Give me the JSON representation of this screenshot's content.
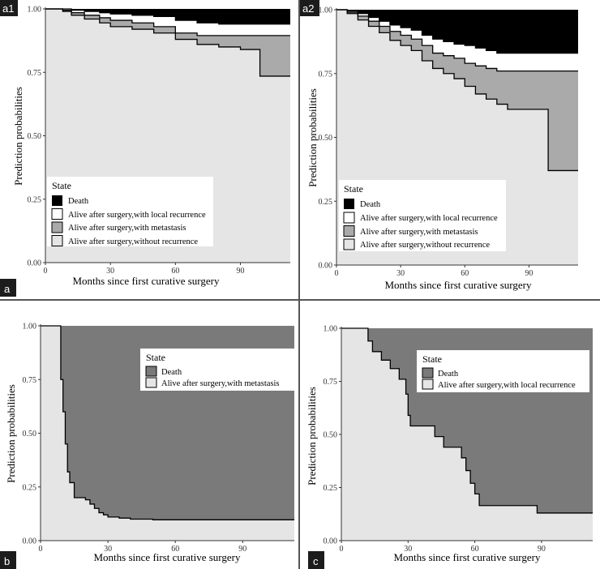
{
  "figure": {
    "divider_color": "#555555"
  },
  "chart_data": [
    {
      "id": "a1",
      "panel_label": "a1",
      "group_label": "a",
      "type": "area",
      "stacked_step_area": true,
      "xlabel": "Months since first curative surgery",
      "ylabel": "Prediction probabilities",
      "xlim": [
        0,
        113
      ],
      "ylim": [
        0,
        1
      ],
      "xticks": [
        "0",
        "30",
        "60",
        "90"
      ],
      "xtick_values": [
        0,
        30,
        60,
        90
      ],
      "yticks": [
        "0.00",
        "0.25",
        "0.50",
        "0.75",
        "1.00"
      ],
      "ytick_values": [
        0,
        0.25,
        0.5,
        0.75,
        1.0
      ],
      "legend": {
        "title": "State",
        "position": "bottom-left",
        "entries": [
          {
            "label": "Death",
            "color": "#000000"
          },
          {
            "label": "Alive after surgery,with local recurrence",
            "color": "#ffffff"
          },
          {
            "label": "Alive after surgery,with metastasis",
            "color": "#aaaaaa"
          },
          {
            "label": "Alive after surgery,without recurrence",
            "color": "#e5e5e5"
          }
        ]
      },
      "series": [
        {
          "name": "Alive after surgery,without recurrence",
          "color": "#e5e5e5",
          "x": [
            0,
            8,
            12,
            18,
            25,
            30,
            40,
            50,
            60,
            70,
            80,
            90,
            99,
            113
          ],
          "values": [
            1.0,
            0.99,
            0.975,
            0.96,
            0.945,
            0.93,
            0.92,
            0.905,
            0.88,
            0.86,
            0.85,
            0.84,
            0.735,
            0.735
          ]
        },
        {
          "name": "Alive after surgery,with metastasis",
          "color": "#aaaaaa",
          "x": [
            0,
            8,
            12,
            18,
            25,
            30,
            40,
            50,
            60,
            70,
            80,
            90,
            99,
            113
          ],
          "values": [
            1.0,
            0.995,
            0.985,
            0.975,
            0.965,
            0.955,
            0.945,
            0.93,
            0.905,
            0.895,
            0.895,
            0.895,
            0.895,
            0.895
          ]
        },
        {
          "name": "Alive after surgery,with local recurrence",
          "color": "#ffffff",
          "x": [
            0,
            8,
            12,
            18,
            25,
            30,
            40,
            50,
            60,
            70,
            80,
            90,
            99,
            113
          ],
          "values": [
            1.0,
            1.0,
            0.995,
            0.99,
            0.985,
            0.98,
            0.975,
            0.97,
            0.955,
            0.945,
            0.94,
            0.94,
            0.94,
            0.94
          ]
        },
        {
          "name": "Death",
          "color": "#000000",
          "x": [
            0,
            113
          ],
          "values": [
            1.0,
            1.0
          ]
        }
      ]
    },
    {
      "id": "a2",
      "panel_label": "a2",
      "type": "area",
      "stacked_step_area": true,
      "xlabel": "Months since first curative surgery",
      "ylabel": "Prediction probabilities",
      "xlim": [
        0,
        113
      ],
      "ylim": [
        0,
        1
      ],
      "xticks": [
        "0",
        "30",
        "60",
        "90"
      ],
      "xtick_values": [
        0,
        30,
        60,
        90
      ],
      "yticks": [
        "0.00",
        "0.25",
        "0.50",
        "0.75",
        "1.00"
      ],
      "ytick_values": [
        0,
        0.25,
        0.5,
        0.75,
        1.0
      ],
      "legend": {
        "title": "State",
        "position": "bottom-left",
        "entries": [
          {
            "label": "Death",
            "color": "#000000"
          },
          {
            "label": "Alive after surgery,with local recurrence",
            "color": "#ffffff"
          },
          {
            "label": "Alive after surgery,with metastasis",
            "color": "#aaaaaa"
          },
          {
            "label": "Alive after surgery,without recurrence",
            "color": "#e5e5e5"
          }
        ]
      },
      "series": [
        {
          "name": "Alive after surgery,without recurrence",
          "color": "#e5e5e5",
          "x": [
            0,
            5,
            10,
            15,
            20,
            25,
            30,
            35,
            40,
            45,
            50,
            55,
            60,
            65,
            70,
            75,
            80,
            90,
            99,
            113
          ],
          "values": [
            1.0,
            0.985,
            0.96,
            0.935,
            0.91,
            0.88,
            0.86,
            0.84,
            0.8,
            0.77,
            0.75,
            0.73,
            0.7,
            0.67,
            0.65,
            0.63,
            0.61,
            0.61,
            0.37,
            0.37
          ]
        },
        {
          "name": "Alive after surgery,with metastasis",
          "color": "#aaaaaa",
          "x": [
            0,
            5,
            10,
            15,
            20,
            25,
            30,
            35,
            40,
            45,
            50,
            55,
            60,
            65,
            70,
            75,
            80,
            90,
            99,
            113
          ],
          "values": [
            1.0,
            0.99,
            0.975,
            0.955,
            0.935,
            0.915,
            0.9,
            0.885,
            0.86,
            0.83,
            0.82,
            0.81,
            0.79,
            0.78,
            0.77,
            0.76,
            0.76,
            0.76,
            0.76,
            0.76
          ]
        },
        {
          "name": "Alive after surgery,with local recurrence",
          "color": "#ffffff",
          "x": [
            0,
            5,
            10,
            15,
            20,
            25,
            30,
            35,
            40,
            45,
            50,
            55,
            60,
            65,
            70,
            75,
            80,
            90,
            99,
            113
          ],
          "values": [
            1.0,
            0.995,
            0.985,
            0.97,
            0.955,
            0.94,
            0.93,
            0.92,
            0.9,
            0.885,
            0.875,
            0.865,
            0.86,
            0.85,
            0.84,
            0.83,
            0.83,
            0.83,
            0.83,
            0.83
          ]
        },
        {
          "name": "Death",
          "color": "#000000",
          "x": [
            0,
            113
          ],
          "values": [
            1.0,
            1.0
          ]
        }
      ]
    },
    {
      "id": "b",
      "panel_label": "b",
      "type": "area",
      "stacked_step_area": true,
      "xlabel": "Months since first curative surgery",
      "ylabel": "Prediction probabilities",
      "xlim": [
        0,
        113
      ],
      "ylim": [
        0,
        1
      ],
      "xticks": [
        "0",
        "30",
        "60",
        "90"
      ],
      "xtick_values": [
        0,
        30,
        60,
        90
      ],
      "yticks": [
        "0.00",
        "0.25",
        "0.50",
        "0.75",
        "1.00"
      ],
      "ytick_values": [
        0,
        0.25,
        0.5,
        0.75,
        1.0
      ],
      "legend": {
        "title": "State",
        "position": "top-right",
        "entries": [
          {
            "label": "Death",
            "color": "#7a7a7a"
          },
          {
            "label": "Alive after surgery,with metastasis",
            "color": "#e5e5e5"
          }
        ]
      },
      "series": [
        {
          "name": "Alive after surgery,with metastasis",
          "color": "#e5e5e5",
          "x": [
            0,
            8,
            9,
            10,
            11,
            12,
            13,
            15,
            20,
            22,
            24,
            26,
            28,
            30,
            35,
            40,
            50,
            113
          ],
          "values": [
            1.0,
            1.0,
            0.75,
            0.6,
            0.45,
            0.32,
            0.27,
            0.2,
            0.19,
            0.17,
            0.15,
            0.13,
            0.12,
            0.11,
            0.105,
            0.1,
            0.097,
            0.097
          ]
        },
        {
          "name": "Death",
          "color": "#7a7a7a",
          "x": [
            0,
            113
          ],
          "values": [
            1.0,
            1.0
          ]
        }
      ]
    },
    {
      "id": "c",
      "panel_label": "c",
      "type": "area",
      "stacked_step_area": true,
      "xlabel": "Months since first curative surgery",
      "ylabel": "Prediction probabilities",
      "xlim": [
        0,
        113
      ],
      "ylim": [
        0,
        1
      ],
      "xticks": [
        "0",
        "30",
        "60",
        "90"
      ],
      "xtick_values": [
        0,
        30,
        60,
        90
      ],
      "yticks": [
        "0.00",
        "0.25",
        "0.50",
        "0.75",
        "1.00"
      ],
      "ytick_values": [
        0,
        0.25,
        0.5,
        0.75,
        1.0
      ],
      "legend": {
        "title": "State",
        "position": "top-right",
        "entries": [
          {
            "label": "Death",
            "color": "#7a7a7a"
          },
          {
            "label": "Alive after surgery,with local recurrence",
            "color": "#e5e5e5"
          }
        ]
      },
      "series": [
        {
          "name": "Alive after surgery,with local recurrence",
          "color": "#e5e5e5",
          "x": [
            0,
            12,
            14,
            18,
            22,
            26,
            29,
            30,
            31,
            33,
            36,
            42,
            46,
            50,
            54,
            56,
            58,
            60,
            62,
            88,
            113
          ],
          "values": [
            1.0,
            0.94,
            0.89,
            0.85,
            0.81,
            0.76,
            0.69,
            0.59,
            0.54,
            0.54,
            0.54,
            0.49,
            0.44,
            0.44,
            0.39,
            0.33,
            0.27,
            0.22,
            0.165,
            0.13,
            0.13
          ]
        },
        {
          "name": "Death",
          "color": "#7a7a7a",
          "x": [
            0,
            113
          ],
          "values": [
            1.0,
            1.0
          ]
        }
      ]
    }
  ]
}
